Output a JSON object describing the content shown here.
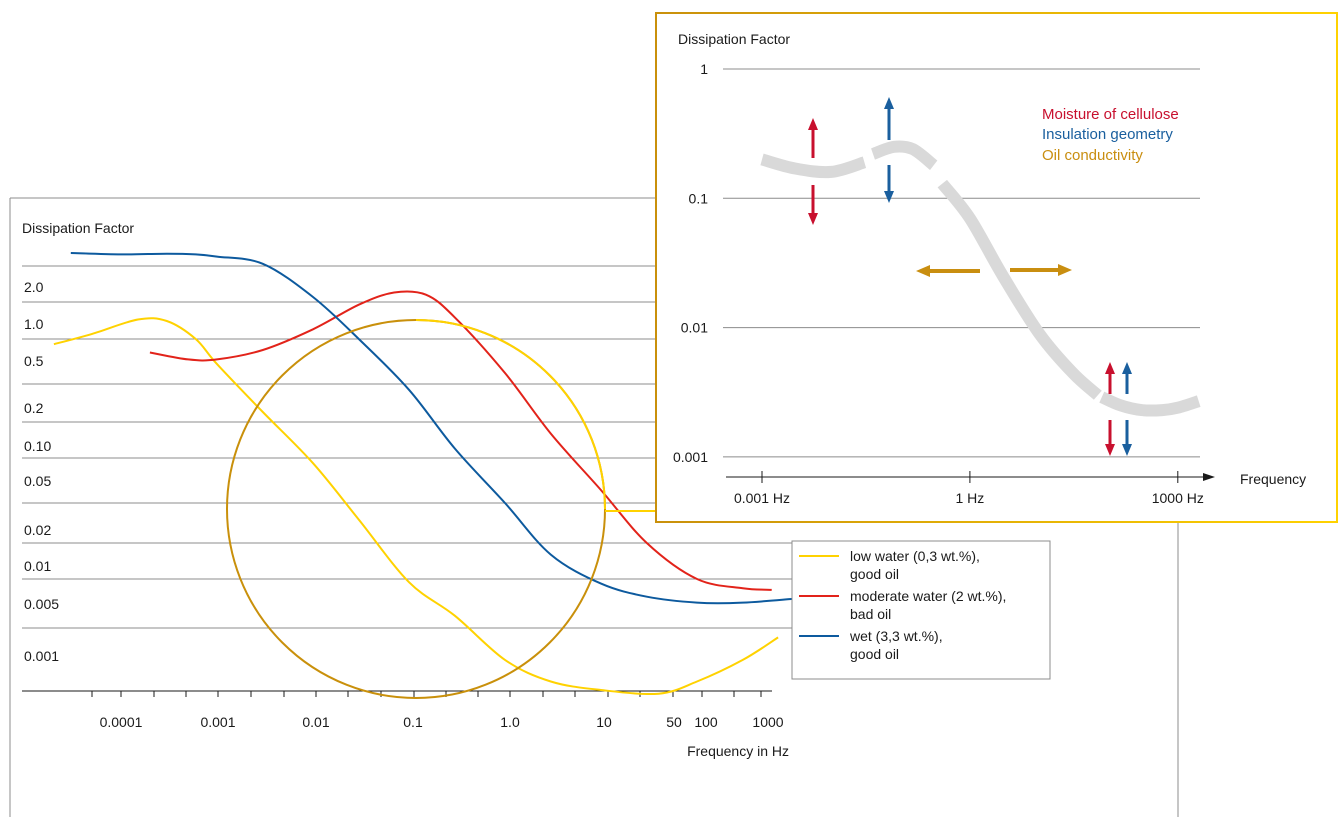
{
  "colors": {
    "yellow": "#ffd200",
    "red": "#e2231a",
    "blue": "#0d5a9e",
    "orange": "#c9900b",
    "inset_arrow_red": "#c8102e",
    "inset_arrow_blue": "#1a5f9e",
    "inset_arrow_orange": "#c98e10",
    "inset_curve": "#d9d9d9",
    "grid": "#8c8c8c",
    "axis": "#1a1a1a"
  },
  "chart_data": [
    {
      "type": "line",
      "ylabel": "Dissipation Factor",
      "xlabel": "Frequency in Hz",
      "x_scale": "log",
      "xlim": [
        2e-05,
        1000
      ],
      "x_ticks": [
        0.0001,
        0.001,
        0.01,
        0.1,
        1.0,
        10,
        50,
        100,
        1000
      ],
      "x_tick_labels": [
        "0.0001",
        "0.001",
        "0.01",
        "0.1",
        "1.0",
        "10",
        "50",
        "100",
        "1000"
      ],
      "y_tick_labels": [
        "2.0",
        "1.0",
        "0.5",
        "0.2",
        "0.10",
        "0.05",
        "0.02",
        "0.01",
        "0.005",
        "0.001"
      ],
      "grid": true,
      "legend_position": "bottom-right",
      "series": [
        {
          "name": "low water (0,3 wt.%), good oil",
          "color_key": "yellow",
          "x": [
            2e-05,
            5e-05,
            0.00015,
            0.0003,
            0.0006,
            0.001,
            0.003,
            0.01,
            0.03,
            0.1,
            0.3,
            1,
            3,
            10,
            40,
            100,
            300,
            700
          ],
          "y": [
            0.45,
            0.55,
            0.72,
            0.7,
            0.5,
            0.3,
            0.12,
            0.045,
            0.015,
            0.0045,
            0.0015,
            0.0007,
            0.00055,
            0.0005,
            0.00048,
            0.00055,
            0.0007,
            0.0009
          ]
        },
        {
          "name": "moderate water (2 wt.%), bad oil",
          "color_key": "red",
          "x": [
            0.0002,
            0.0005,
            0.001,
            0.003,
            0.01,
            0.03,
            0.07,
            0.15,
            0.3,
            1,
            3,
            10,
            30,
            100,
            300,
            600
          ],
          "y": [
            0.38,
            0.33,
            0.33,
            0.4,
            0.6,
            0.95,
            1.2,
            1.15,
            0.75,
            0.25,
            0.08,
            0.026,
            0.01,
            0.005,
            0.0037,
            0.0035
          ]
        },
        {
          "name": "wet (3,3 wt.%), good oil",
          "color_key": "blue",
          "x": [
            3e-05,
            0.0001,
            0.0003,
            0.0006,
            0.001,
            0.003,
            0.01,
            0.03,
            0.1,
            0.3,
            1,
            3,
            10,
            30,
            100,
            300,
            1000
          ],
          "y": [
            3.5,
            3.3,
            3.4,
            3.3,
            3.0,
            2.2,
            1.1,
            0.5,
            0.18,
            0.06,
            0.02,
            0.008,
            0.0043,
            0.0028,
            0.0023,
            0.0023,
            0.0026
          ]
        }
      ]
    },
    {
      "type": "line",
      "ylabel": "Dissipation Factor",
      "xlabel": "Frequency",
      "x_scale": "log",
      "y_scale": "log",
      "xlim": [
        0.0001,
        10000
      ],
      "ylim": [
        0.001,
        1
      ],
      "x_ticks": [
        0.001,
        1,
        1000
      ],
      "x_tick_labels": [
        "0.001 Hz",
        "1 Hz",
        "1000 Hz"
      ],
      "y_ticks": [
        1,
        0.1,
        0.01,
        0.001
      ],
      "y_tick_labels": [
        "1",
        "0.1",
        "0.01",
        "0.001"
      ],
      "grid": true,
      "legend_position": "top-right",
      "annotations": [
        {
          "text": "Moisture of cellulose",
          "color_key": "inset_arrow_red"
        },
        {
          "text": "Insulation geometry",
          "color_key": "inset_arrow_blue"
        },
        {
          "text": "Oil conductivity",
          "color_key": "inset_arrow_orange"
        }
      ],
      "series": [
        {
          "color_key": "inset_curve",
          "segments": [
            {
              "x": [
                0.001,
                0.003,
                0.01,
                0.03
              ],
              "y": [
                0.2,
                0.17,
                0.16,
                0.19
              ]
            },
            {
              "x": [
                0.04,
                0.08,
                0.15,
                0.3
              ],
              "y": [
                0.22,
                0.25,
                0.24,
                0.18
              ]
            },
            {
              "x": [
                0.4,
                1,
                3,
                10,
                30,
                70
              ],
              "y": [
                0.13,
                0.07,
                0.025,
                0.009,
                0.0045,
                0.003
              ]
            },
            {
              "x": [
                80,
                150,
                300,
                600,
                1000,
                2000
              ],
              "y": [
                0.0029,
                0.0025,
                0.0023,
                0.0023,
                0.0024,
                0.0027
              ]
            }
          ]
        }
      ]
    }
  ]
}
